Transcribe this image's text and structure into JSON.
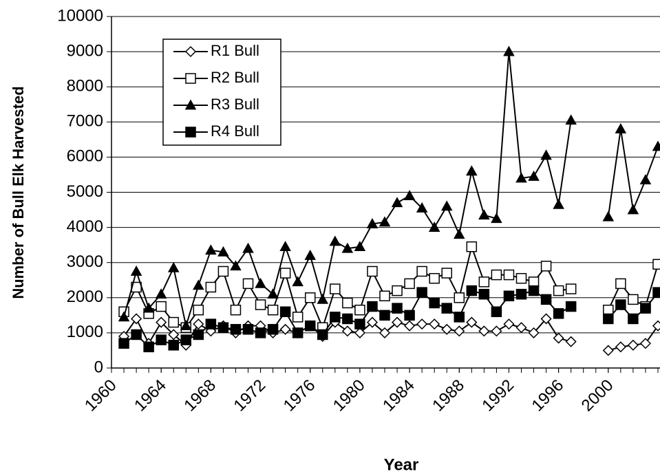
{
  "chart_data": {
    "type": "line",
    "xlabel": "Year",
    "ylabel": "Number of  Bull Elk Harvested",
    "x": [
      1961,
      1962,
      1963,
      1964,
      1965,
      1966,
      1967,
      1968,
      1969,
      1970,
      1971,
      1972,
      1973,
      1974,
      1975,
      1976,
      1977,
      1978,
      1979,
      1980,
      1981,
      1982,
      1983,
      1984,
      1985,
      1986,
      1987,
      1988,
      1989,
      1990,
      1991,
      1992,
      1993,
      1994,
      1995,
      1996,
      1997,
      1998,
      1999,
      2000,
      2001,
      2002,
      2003,
      2004
    ],
    "series": [
      {
        "name": "R1 Bull",
        "color": "#000000",
        "marker": "diamond-open",
        "values": [
          900,
          1400,
          700,
          1300,
          950,
          650,
          1250,
          1050,
          1200,
          1000,
          1200,
          1200,
          1000,
          1100,
          1000,
          1200,
          900,
          1300,
          1050,
          1000,
          1300,
          1000,
          1300,
          1200,
          1250,
          1250,
          1100,
          1050,
          1300,
          1050,
          1050,
          1250,
          1150,
          1000,
          1400,
          850,
          750,
          null,
          null,
          500,
          600,
          650,
          700,
          1200
        ]
      },
      {
        "name": "R2 Bull",
        "color": "#000000",
        "marker": "square-open",
        "values": [
          1600,
          2300,
          1550,
          1750,
          1300,
          1150,
          1650,
          2300,
          2750,
          1650,
          2400,
          1800,
          1650,
          2700,
          1450,
          2000,
          1150,
          2250,
          1850,
          1650,
          2750,
          2050,
          2200,
          2400,
          2750,
          2550,
          2700,
          2000,
          3450,
          2450,
          2650,
          2650,
          2550,
          2450,
          2900,
          2200,
          2250,
          null,
          null,
          1650,
          2400,
          1950,
          1750,
          2950
        ]
      },
      {
        "name": "R3 Bull",
        "color": "#000000",
        "marker": "triangle-filled",
        "values": [
          1450,
          2750,
          1700,
          2100,
          2850,
          1200,
          2350,
          3350,
          3300,
          2900,
          3400,
          2400,
          2100,
          3450,
          2450,
          3200,
          1950,
          3600,
          3400,
          3450,
          4100,
          4150,
          4700,
          4900,
          4550,
          4000,
          4600,
          3800,
          5600,
          4350,
          4250,
          9000,
          5400,
          5450,
          6050,
          4650,
          7050,
          null,
          null,
          4300,
          6800,
          4500,
          5350,
          6300
        ]
      },
      {
        "name": "R4 Bull",
        "color": "#000000",
        "marker": "square-filled",
        "values": [
          700,
          950,
          600,
          800,
          650,
          800,
          950,
          1250,
          1150,
          1100,
          1100,
          1000,
          1100,
          1600,
          1000,
          1200,
          950,
          1450,
          1400,
          1250,
          1750,
          1500,
          1700,
          1500,
          2150,
          1850,
          1700,
          1450,
          2200,
          2100,
          1600,
          2050,
          2100,
          2200,
          1950,
          1550,
          1750,
          null,
          null,
          1400,
          1800,
          1400,
          1700,
          2150
        ]
      }
    ],
    "xlim": [
      1960,
      2004
    ],
    "xticks": [
      1960,
      1964,
      1968,
      1972,
      1976,
      1980,
      1984,
      1988,
      1992,
      1996,
      2000
    ],
    "ylim": [
      0,
      10000
    ],
    "yticks": [
      0,
      1000,
      2000,
      3000,
      4000,
      5000,
      6000,
      7000,
      8000,
      9000,
      10000
    ],
    "grid": true,
    "legend": "upper left"
  }
}
